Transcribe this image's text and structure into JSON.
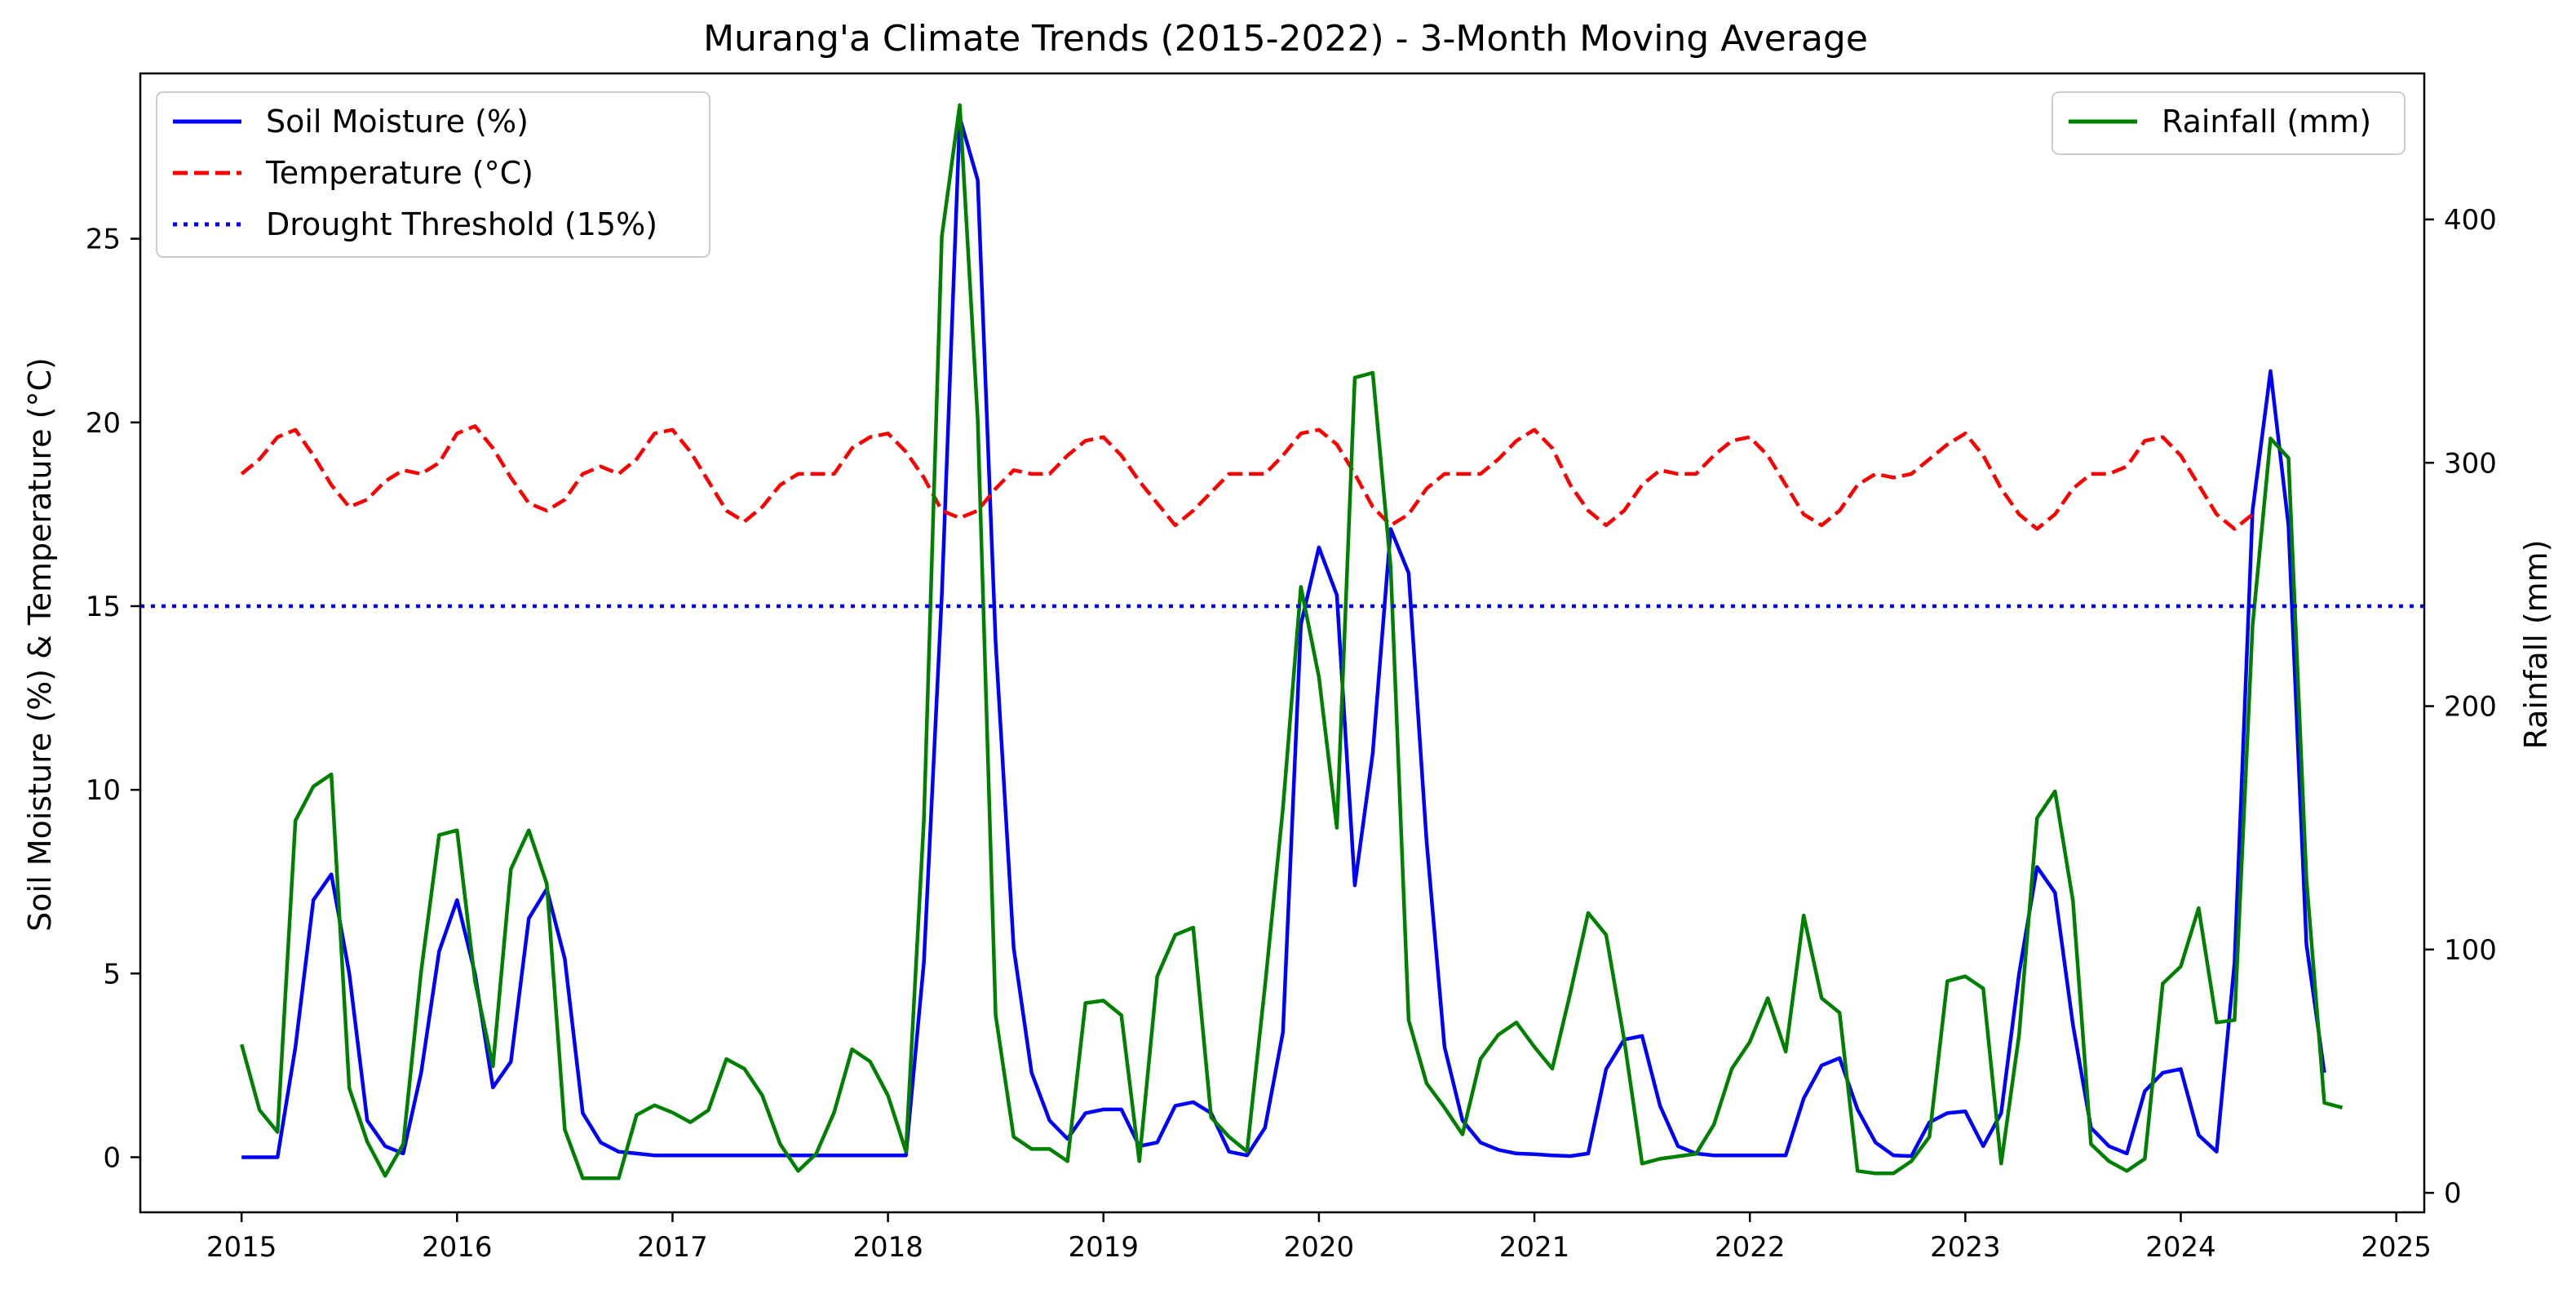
{
  "chart_data": {
    "type": "line",
    "title": "Murang'a Climate Trends (2015-2022) - 3-Month Moving Average",
    "xlabel": "",
    "ylabel_left": "Soil Moisture (%) & Temperature (°C)",
    "ylabel_right": "Rainfall (mm)",
    "xlim": [
      2014.53,
      2025.13
    ],
    "ylim_left": [
      -1.5,
      29.5
    ],
    "ylim_right": [
      -8,
      460
    ],
    "x_ticks": [
      2015,
      2016,
      2017,
      2018,
      2019,
      2020,
      2021,
      2022,
      2023,
      2024,
      2025
    ],
    "y_left_ticks": [
      0,
      5,
      10,
      15,
      20,
      25
    ],
    "y_right_ticks": [
      0,
      100,
      200,
      300,
      400
    ],
    "grid": false,
    "legend_left_position": "upper-left",
    "legend_right_position": "upper-right",
    "x_start": 2015.0,
    "x_step": 0.08333,
    "series": [
      {
        "name": "Soil Moisture (%)",
        "axis": "left",
        "color": "#0000ff",
        "style": "solid",
        "values": [
          0,
          0,
          0,
          3,
          7,
          7.7,
          5,
          1,
          0.3,
          0.1,
          2.3,
          5.6,
          7,
          5,
          1.9,
          2.6,
          6.5,
          7.3,
          5.4,
          1.2,
          0.4,
          0.15,
          0.1,
          0.05,
          0.05,
          0.05,
          0.05,
          0.05,
          0.05,
          0.05,
          0.05,
          0.05,
          0.05,
          0.05,
          0.05,
          0.05,
          0.05,
          0.05,
          5.3,
          15.3,
          28.3,
          26.6,
          14,
          5.7,
          2.3,
          1,
          0.5,
          1.2,
          1.3,
          1.3,
          0.3,
          0.4,
          1.4,
          1.5,
          1.2,
          0.15,
          0.05,
          0.8,
          3.4,
          14.5,
          16.6,
          15.3,
          7.4,
          11,
          17.1,
          15.9,
          8.6,
          3,
          1,
          0.4,
          0.2,
          0.1,
          0.08,
          0.05,
          0.03,
          0.1,
          2.4,
          3.2,
          3.3,
          1.4,
          0.3,
          0.1,
          0.05,
          0.05,
          0.05,
          0.05,
          0.05,
          1.6,
          2.5,
          2.7,
          1.3,
          0.4,
          0.05,
          0.03,
          0.95,
          1.2,
          1.25,
          0.3,
          1.2,
          5,
          7.9,
          7.2,
          3.6,
          0.8,
          0.3,
          0.1,
          1.8,
          2.3,
          2.4,
          0.6,
          0.15,
          5.3,
          17.6,
          21.4,
          17.2,
          5.8,
          2.3
        ]
      },
      {
        "name": "Temperature (°C)",
        "axis": "left",
        "color": "#ff0000",
        "style": "dashed",
        "values": [
          18.6,
          19,
          19.6,
          19.8,
          19.1,
          18.3,
          17.7,
          17.9,
          18.4,
          18.7,
          18.6,
          18.9,
          19.7,
          19.9,
          19.3,
          18.5,
          17.8,
          17.6,
          17.9,
          18.6,
          18.8,
          18.6,
          19,
          19.7,
          19.8,
          19.2,
          18.4,
          17.6,
          17.3,
          17.7,
          18.3,
          18.6,
          18.6,
          18.6,
          19.3,
          19.6,
          19.7,
          19.2,
          18.5,
          17.6,
          17.4,
          17.6,
          18.2,
          18.7,
          18.6,
          18.6,
          19.1,
          19.5,
          19.6,
          19.1,
          18.4,
          17.8,
          17.2,
          17.6,
          18.1,
          18.6,
          18.6,
          18.6,
          19.1,
          19.7,
          19.8,
          19.4,
          18.6,
          17.7,
          17.2,
          17.5,
          18.2,
          18.6,
          18.6,
          18.6,
          19,
          19.5,
          19.8,
          19.3,
          18.3,
          17.6,
          17.2,
          17.6,
          18.3,
          18.7,
          18.6,
          18.6,
          19.1,
          19.5,
          19.6,
          19.1,
          18.3,
          17.5,
          17.2,
          17.6,
          18.3,
          18.6,
          18.5,
          18.6,
          19,
          19.4,
          19.7,
          19.1,
          18.2,
          17.5,
          17.1,
          17.5,
          18.2,
          18.6,
          18.6,
          18.8,
          19.5,
          19.6,
          19.1,
          18.3,
          17.5,
          17.1,
          17.5
        ]
      },
      {
        "name": "Rainfall (mm)",
        "axis": "right",
        "color": "#008000",
        "style": "solid",
        "values": [
          61,
          34,
          25,
          153,
          167,
          172,
          43,
          21,
          7,
          20,
          91,
          147,
          149,
          87,
          52,
          133,
          149,
          127,
          26,
          6,
          6,
          6,
          32,
          36,
          33,
          29,
          34,
          55,
          51,
          40,
          20,
          9,
          16,
          33,
          59,
          54,
          40,
          17,
          153,
          393,
          447,
          318,
          73,
          23,
          18,
          18,
          13,
          78,
          79,
          73,
          13,
          89,
          106,
          109,
          31,
          23,
          17,
          85,
          158,
          249,
          212,
          150,
          335,
          337,
          257,
          71,
          45,
          35,
          24,
          55,
          65,
          70,
          60,
          51,
          82,
          115,
          106,
          63,
          12,
          14,
          15,
          16,
          28,
          51,
          62,
          80,
          58,
          114,
          80,
          74,
          9,
          8,
          8,
          13,
          23,
          87,
          89,
          84,
          12,
          65,
          154,
          165,
          120,
          20,
          13,
          9,
          14,
          86,
          93,
          117,
          70,
          71,
          233,
          310,
          302,
          129,
          37,
          35
        ]
      },
      {
        "name": "Drought Threshold (15%)",
        "axis": "left",
        "color": "#0000ff",
        "style": "dotted",
        "constant": 15
      }
    ]
  }
}
